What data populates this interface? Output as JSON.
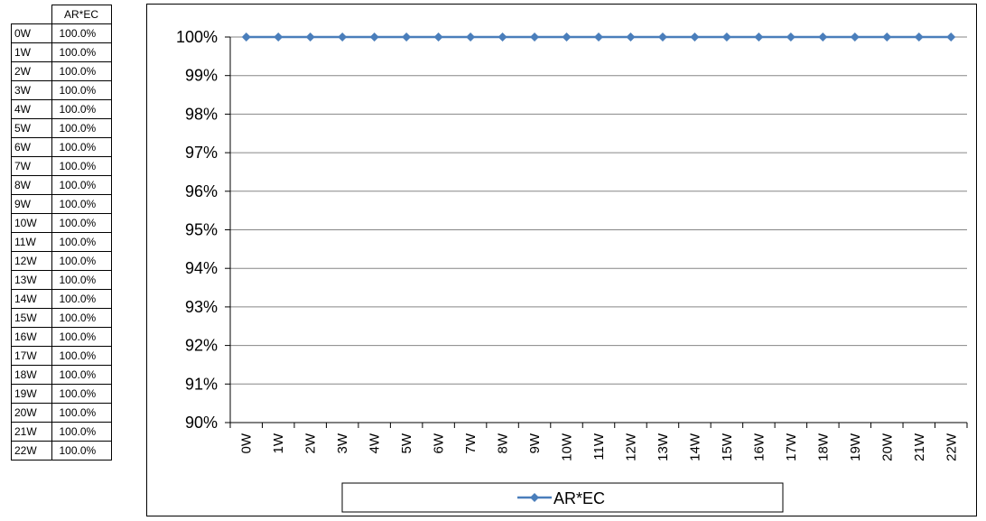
{
  "table": {
    "header": "AR*EC",
    "rows": [
      {
        "label": "0W",
        "value": "100.0%"
      },
      {
        "label": "1W",
        "value": "100.0%"
      },
      {
        "label": "2W",
        "value": "100.0%"
      },
      {
        "label": "3W",
        "value": "100.0%"
      },
      {
        "label": "4W",
        "value": "100.0%"
      },
      {
        "label": "5W",
        "value": "100.0%"
      },
      {
        "label": "6W",
        "value": "100.0%"
      },
      {
        "label": "7W",
        "value": "100.0%"
      },
      {
        "label": "8W",
        "value": "100.0%"
      },
      {
        "label": "9W",
        "value": "100.0%"
      },
      {
        "label": "10W",
        "value": "100.0%"
      },
      {
        "label": "11W",
        "value": "100.0%"
      },
      {
        "label": "12W",
        "value": "100.0%"
      },
      {
        "label": "13W",
        "value": "100.0%"
      },
      {
        "label": "14W",
        "value": "100.0%"
      },
      {
        "label": "15W",
        "value": "100.0%"
      },
      {
        "label": "16W",
        "value": "100.0%"
      },
      {
        "label": "17W",
        "value": "100.0%"
      },
      {
        "label": "18W",
        "value": "100.0%"
      },
      {
        "label": "19W",
        "value": "100.0%"
      },
      {
        "label": "20W",
        "value": "100.0%"
      },
      {
        "label": "21W",
        "value": "100.0%"
      },
      {
        "label": "22W",
        "value": "100.0%"
      }
    ]
  },
  "chart_data": {
    "type": "line",
    "categories": [
      "0W",
      "1W",
      "2W",
      "3W",
      "4W",
      "5W",
      "6W",
      "7W",
      "8W",
      "9W",
      "10W",
      "11W",
      "12W",
      "13W",
      "14W",
      "15W",
      "16W",
      "17W",
      "18W",
      "19W",
      "20W",
      "21W",
      "22W"
    ],
    "series": [
      {
        "name": "AR*EC",
        "values": [
          100,
          100,
          100,
          100,
          100,
          100,
          100,
          100,
          100,
          100,
          100,
          100,
          100,
          100,
          100,
          100,
          100,
          100,
          100,
          100,
          100,
          100,
          100
        ],
        "color": "#4a7ebb",
        "marker": "diamond"
      }
    ],
    "title": "",
    "xlabel": "",
    "ylabel": "",
    "ylim": [
      90,
      100
    ],
    "yticks": [
      90,
      91,
      92,
      93,
      94,
      95,
      96,
      97,
      98,
      99,
      100
    ],
    "ytick_labels": [
      "90%",
      "91%",
      "92%",
      "93%",
      "94%",
      "95%",
      "96%",
      "97%",
      "98%",
      "99%",
      "100%"
    ],
    "grid": true,
    "legend_position": "bottom",
    "gridline_color": "#868686"
  }
}
